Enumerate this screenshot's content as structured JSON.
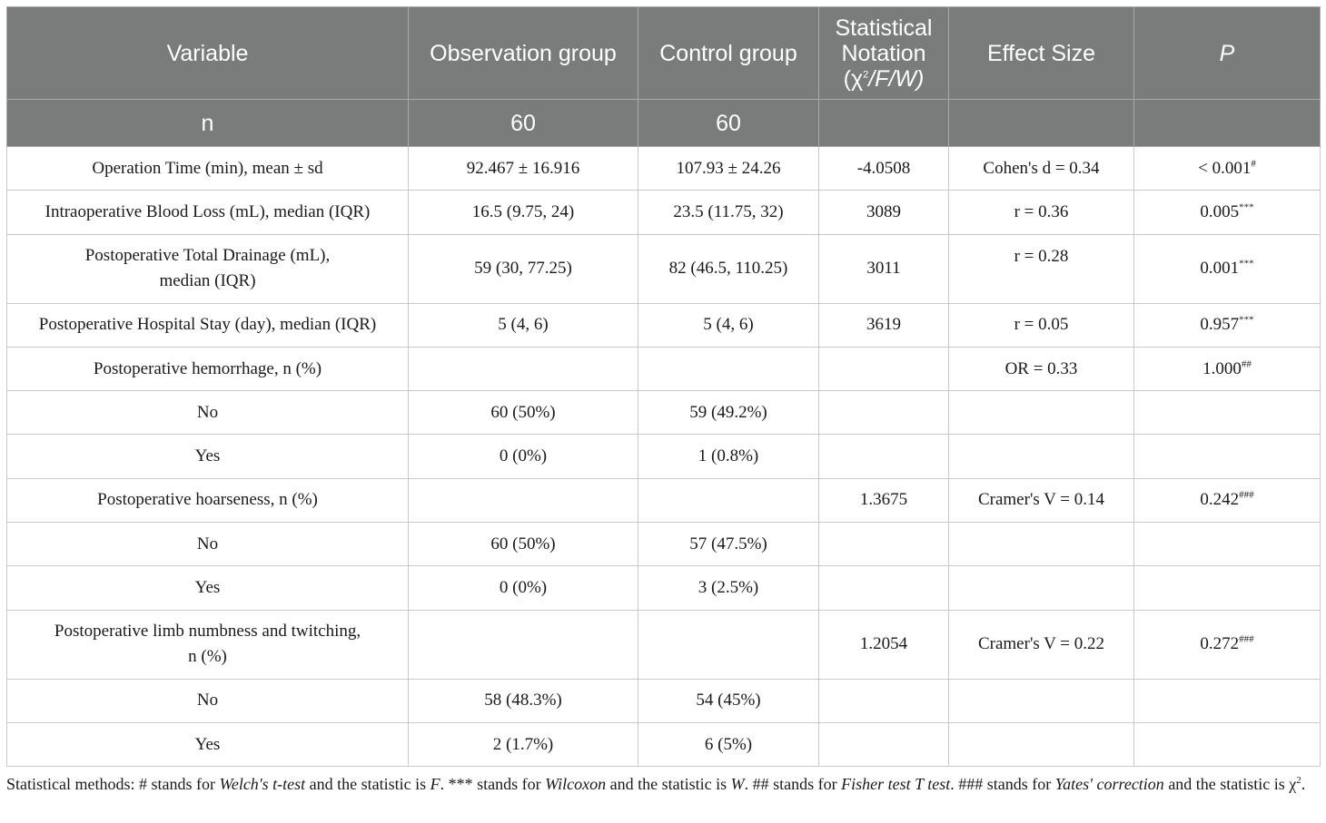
{
  "table": {
    "headers": {
      "variable": "Variable",
      "observation": "Observation group",
      "control": "Control group",
      "statistical_line1": "Statistical",
      "statistical_line2": "Notation",
      "statistical_line3_pre": "(χ",
      "statistical_line3_sup": "2",
      "statistical_line3_post": "/F/W)",
      "effect_size": "Effect Size",
      "p": "P"
    },
    "n_row": {
      "label": "n",
      "observation": "60",
      "control": "60"
    },
    "rows": [
      {
        "variable": "Operation Time (min), mean ± sd",
        "observation": "92.467 ± 16.916",
        "control": "107.93 ± 24.26",
        "statistic": "-4.0508",
        "effect": "Cohen's d = 0.34",
        "p": "< 0.001",
        "p_sup": "#"
      },
      {
        "variable": "Intraoperative Blood Loss (mL), median (IQR)",
        "observation": "16.5 (9.75, 24)",
        "control": "23.5 (11.75, 32)",
        "statistic": "3089",
        "effect": "r = 0.36",
        "p": "0.005",
        "p_sup": "***"
      },
      {
        "variable_line1": "Postoperative Total Drainage (mL),",
        "variable_line2": "median (IQR)",
        "observation": "59 (30, 77.25)",
        "control": "82 (46.5, 110.25)",
        "statistic": "3011",
        "effect": "r = 0.28",
        "p": "0.001",
        "p_sup": "***"
      },
      {
        "variable": "Postoperative Hospital Stay (day), median (IQR)",
        "observation": "5 (4, 6)",
        "control": "5 (4, 6)",
        "statistic": "3619",
        "effect": "r = 0.05",
        "p": "0.957",
        "p_sup": "***"
      },
      {
        "variable": "Postoperative hemorrhage, n (%)",
        "observation": "",
        "control": "",
        "statistic": "",
        "effect": "OR = 0.33",
        "p": "1.000",
        "p_sup": "##"
      },
      {
        "variable": "No",
        "observation": "60 (50%)",
        "control": "59 (49.2%)",
        "statistic": "",
        "effect": "",
        "p": "",
        "p_sup": ""
      },
      {
        "variable": "Yes",
        "observation": "0 (0%)",
        "control": "1 (0.8%)",
        "statistic": "",
        "effect": "",
        "p": "",
        "p_sup": ""
      },
      {
        "variable": "Postoperative hoarseness, n (%)",
        "observation": "",
        "control": "",
        "statistic": "1.3675",
        "effect": "Cramer's V = 0.14",
        "p": "0.242",
        "p_sup": "###"
      },
      {
        "variable": "No",
        "observation": "60 (50%)",
        "control": "57 (47.5%)",
        "statistic": "",
        "effect": "",
        "p": "",
        "p_sup": ""
      },
      {
        "variable": "Yes",
        "observation": "0 (0%)",
        "control": "3 (2.5%)",
        "statistic": "",
        "effect": "",
        "p": "",
        "p_sup": ""
      },
      {
        "variable_line1": "Postoperative limb numbness and twitching,",
        "variable_line2": "n (%)",
        "observation": "",
        "control": "",
        "statistic": "1.2054",
        "effect": "Cramer's V = 0.22",
        "p": "0.272",
        "p_sup": "###"
      },
      {
        "variable": "No",
        "observation": "58 (48.3%)",
        "control": "54 (45%)",
        "statistic": "",
        "effect": "",
        "p": "",
        "p_sup": ""
      },
      {
        "variable": "Yes",
        "observation": "2 (1.7%)",
        "control": "6 (5%)",
        "statistic": "",
        "effect": "",
        "p": "",
        "p_sup": ""
      }
    ]
  },
  "footnote": {
    "t1": "Statistical methods: # stands for ",
    "i1": "Welch's t-test",
    "t2": " and the statistic is ",
    "i2": "F",
    "t3": ". *** stands for ",
    "i3": "Wilcoxon",
    "t4": " and the statistic is ",
    "i4": "W",
    "t5": ". ## stands for ",
    "i5": "Fisher test T test",
    "t6": ". ### stands for ",
    "i6": "Yates' correction",
    "t7": " and the statistic is χ",
    "sup": "2",
    "t8": "."
  }
}
